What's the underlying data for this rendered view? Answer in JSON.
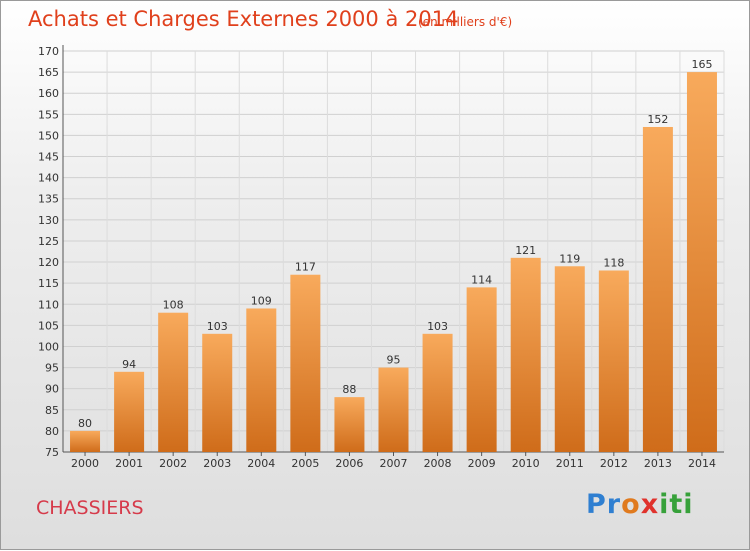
{
  "header": {
    "title": "Achats et Charges Externes 2000 à 2014",
    "unit": "(en milliers d'€)"
  },
  "footer": {
    "place": "CHASSIERS",
    "logo": "Proxiti",
    "logo_letters": [
      "P",
      "r",
      "o",
      "x",
      "i",
      "ti"
    ]
  },
  "colors": {
    "title": "#e0401c",
    "bar_light": "#f6a85a",
    "bar_dark": "#d06e1c",
    "place": "#d63a4a"
  },
  "chart_data": {
    "type": "bar",
    "title": "Achats et Charges Externes 2000 à 2014",
    "subtitle": "(en milliers d'€)",
    "categories": [
      "2000",
      "2001",
      "2002",
      "2003",
      "2004",
      "2005",
      "2006",
      "2007",
      "2008",
      "2009",
      "2010",
      "2011",
      "2012",
      "2013",
      "2014"
    ],
    "values": [
      80,
      94,
      108,
      103,
      109,
      117,
      88,
      95,
      103,
      114,
      121,
      119,
      118,
      152,
      165
    ],
    "ylim": [
      75,
      170
    ],
    "yticks": [
      75,
      80,
      85,
      90,
      95,
      100,
      105,
      110,
      115,
      120,
      125,
      130,
      135,
      140,
      145,
      150,
      155,
      160,
      165,
      170
    ],
    "grid": true,
    "legend": "none"
  }
}
